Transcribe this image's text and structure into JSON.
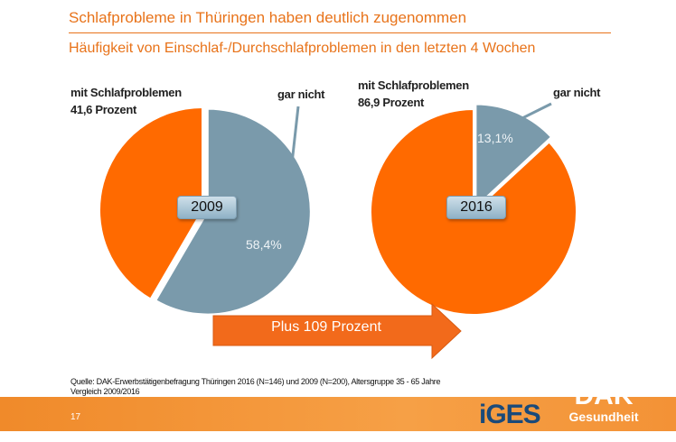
{
  "title": "Schlafprobleme in Thüringen haben deutlich zugenommen",
  "subtitle": "Häufigkeit von Einschlaf-/Durchschlafproblemen in den letzten 4 Wochen",
  "chart_data": [
    {
      "type": "pie",
      "center_label": "2009",
      "slices": [
        {
          "name": "mit Schlafproblemen",
          "value": 41.6,
          "color": "#ff6a00"
        },
        {
          "name": "gar nicht",
          "value": 58.4,
          "color": "#7a9aab"
        }
      ],
      "annotations": {
        "problems": "mit Schlafproblemen",
        "problems_value": "41,6 Prozent",
        "none": "gar nicht",
        "none_pct": "58,4%"
      }
    },
    {
      "type": "pie",
      "center_label": "2016",
      "slices": [
        {
          "name": "mit Schlafproblemen",
          "value": 86.9,
          "color": "#ff6a00"
        },
        {
          "name": "gar nicht",
          "value": 13.1,
          "color": "#7a9aab"
        }
      ],
      "annotations": {
        "problems": "mit Schlafproblemen",
        "problems_value": "86,9 Prozent",
        "none": "gar nicht",
        "none_pct": "13,1%"
      }
    }
  ],
  "arrow_label": "Plus 109 Prozent",
  "source_line1": "Quelle: DAK-Erwerbstätigenbefragung Thüringen 2016 (N=146) und 2009 (N=200), Altersgruppe 35 - 65 Jahre",
  "source_line2": "Vergleich 2009/2016",
  "page_number": "17",
  "logos": {
    "iges": "iGES",
    "dak": "DAK",
    "dak_sub": "Gesundheit"
  }
}
